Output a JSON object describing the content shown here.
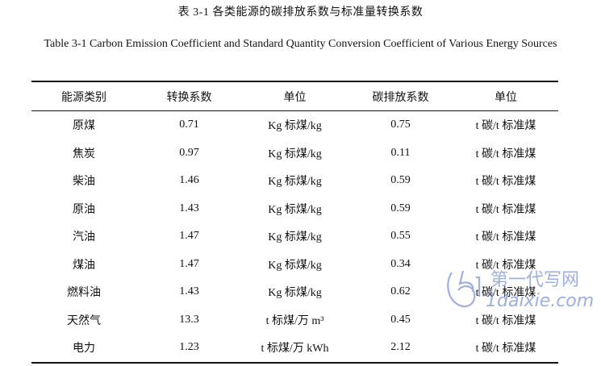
{
  "caption": {
    "chinese": "表 3-1  各类能源的碳排放系数与标准量转换系数",
    "english": "Table 3-1 Carbon Emission Coefficient and Standard Quantity Conversion Coefficient of Various Energy Sources"
  },
  "table": {
    "headers": [
      "能源类别",
      "转换系数",
      "单位",
      "碳排放系数",
      "单位"
    ],
    "rows": [
      [
        "原煤",
        "0.71",
        "Kg 标煤/kg",
        "0.75",
        "t 碳/t 标准煤"
      ],
      [
        "焦炭",
        "0.97",
        "Kg 标煤/kg",
        "0.11",
        "t 碳/t 标准煤"
      ],
      [
        "柴油",
        "1.46",
        "Kg 标煤/kg",
        "0.59",
        "t 碳/t 标准煤"
      ],
      [
        "原油",
        "1.43",
        "Kg 标煤/kg",
        "0.59",
        "t 碳/t 标准煤"
      ],
      [
        "汽油",
        "1.47",
        "Kg 标煤/kg",
        "0.55",
        "t 碳/t 标准煤"
      ],
      [
        "煤油",
        "1.47",
        "Kg 标煤/kg",
        "0.34",
        "t 碳/t 标准煤"
      ],
      [
        "燃料油",
        "1.43",
        "Kg 标煤/kg",
        "0.62",
        "t 碳/t 标准煤"
      ],
      [
        "天然气",
        "13.3",
        "t 标煤/万 m³",
        "0.45",
        "t 碳/t 标准煤"
      ],
      [
        "电力",
        "1.23",
        "t 标煤/万 kWh",
        "2.12",
        "t 碳/t 标准煤"
      ]
    ]
  },
  "watermark": {
    "line1": "第一代写网",
    "line2": "1daixie.com",
    "color": "#4a6fd1"
  }
}
